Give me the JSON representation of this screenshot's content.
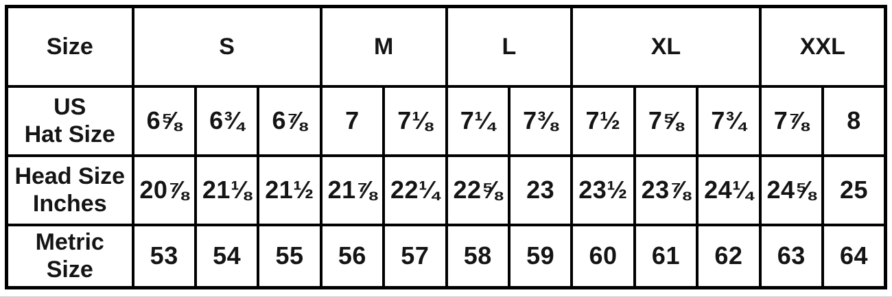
{
  "colors": {
    "background": "#ffffff",
    "border": "#000000",
    "text": "#141414",
    "page_edge_line": "#cfcfcf"
  },
  "table": {
    "corner_label": "Size",
    "size_groups": [
      {
        "label": "S",
        "span": 3
      },
      {
        "label": "M",
        "span": 2
      },
      {
        "label": "L",
        "span": 2
      },
      {
        "label": "XL",
        "span": 3
      },
      {
        "label": "XXL",
        "span": 2
      }
    ],
    "rows": [
      {
        "id": "us-hat-size",
        "label_lines": [
          "US",
          "Hat Size"
        ],
        "values": [
          "6⅝",
          "6¾",
          "6⅞",
          "7",
          "7⅛",
          "7¼",
          "7⅜",
          "7½",
          "7⅝",
          "7¾",
          "7⅞",
          "8"
        ]
      },
      {
        "id": "head-size-inches",
        "label_lines": [
          "Head Size",
          "Inches"
        ],
        "values": [
          "20⅞",
          "21⅛",
          "21½",
          "21⅞",
          "22¼",
          "22⅝",
          "23",
          "23½",
          "23⅞",
          "24¼",
          "24⅝",
          "25"
        ]
      },
      {
        "id": "metric-size",
        "label_lines": [
          "Metric",
          "Size"
        ],
        "values": [
          "53",
          "54",
          "55",
          "56",
          "57",
          "58",
          "59",
          "60",
          "61",
          "62",
          "63",
          "64"
        ]
      }
    ]
  }
}
